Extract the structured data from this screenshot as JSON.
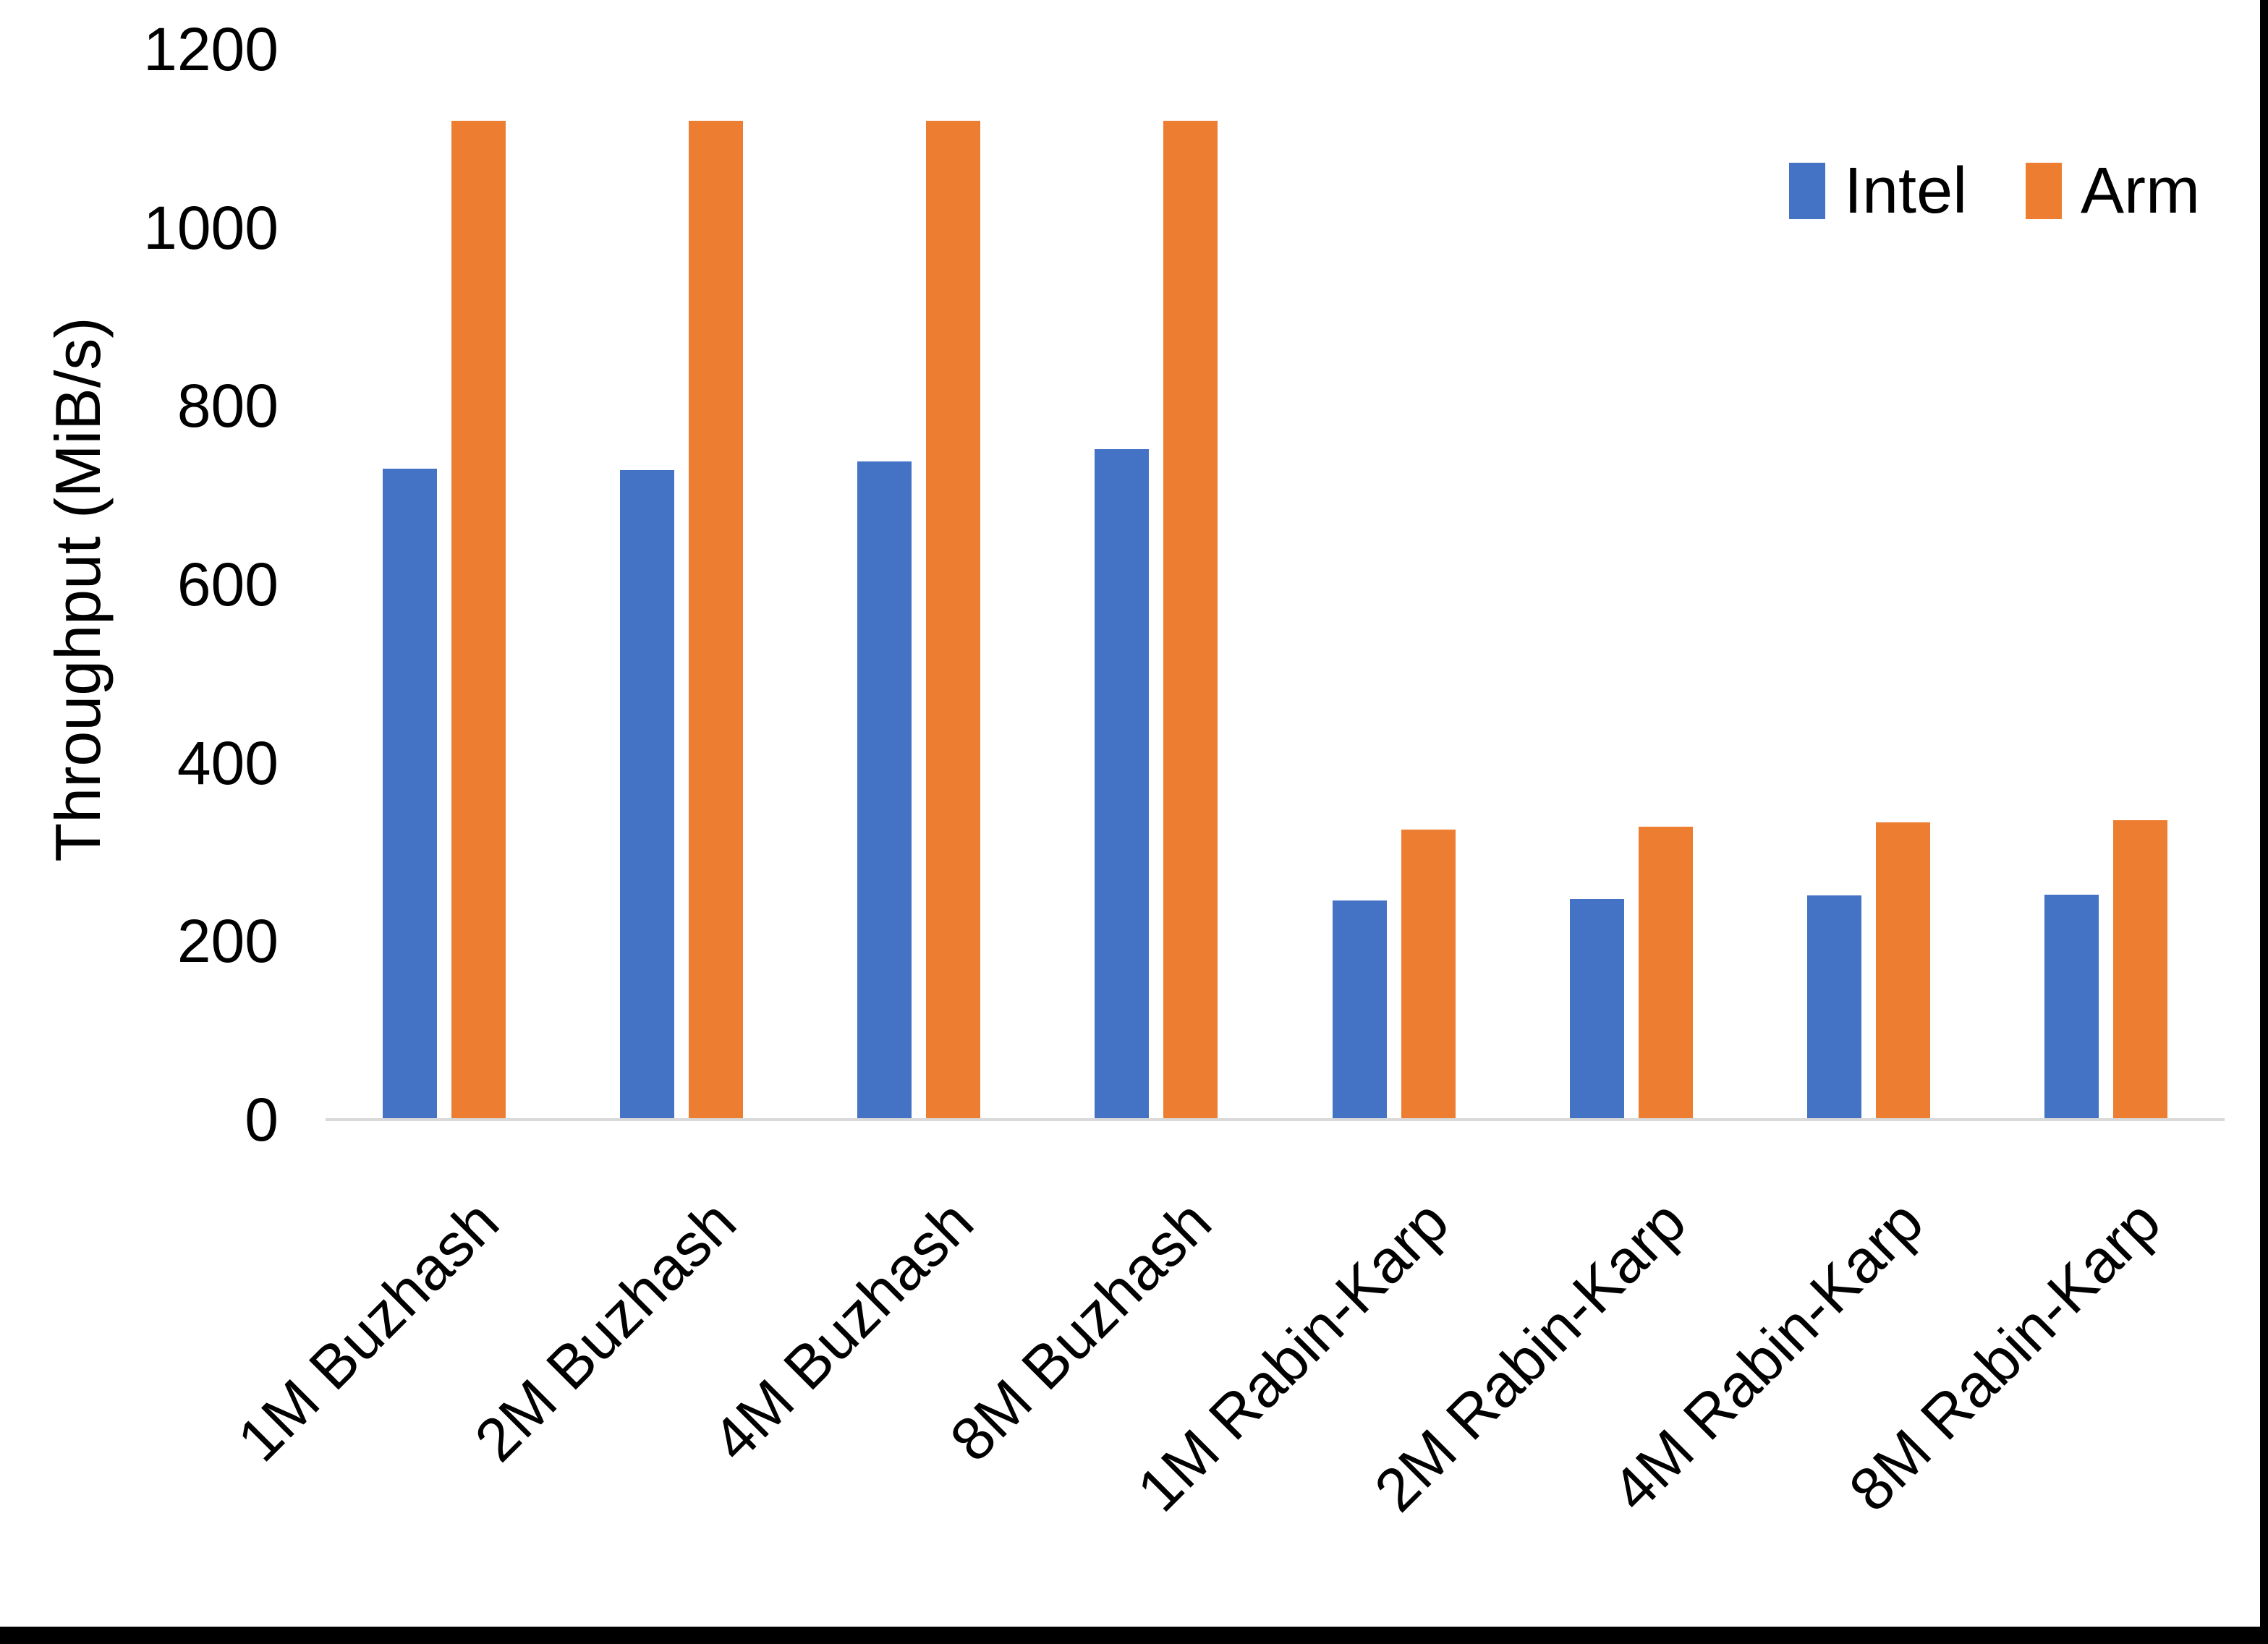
{
  "chart_data": {
    "type": "bar",
    "title": "",
    "categories": [
      "1M Buzhash",
      "2M Buzhash",
      "4M Buzhash",
      "8M Buzhash",
      "1M Rabin-Karp",
      "2M Rabin-Karp",
      "4M Rabin-Karp",
      "8M Rabin-Karp"
    ],
    "series": [
      {
        "name": "Intel",
        "color": "#4472C4",
        "values": [
          730,
          728,
          738,
          752,
          246,
          247,
          251,
          252
        ]
      },
      {
        "name": "Arm",
        "color": "#ED7D31",
        "values": [
          1120,
          1120,
          1120,
          1120,
          325,
          328,
          333,
          336
        ]
      }
    ],
    "xlabel": "",
    "ylabel": "Throughput (MiB/s)",
    "ylim": [
      0,
      1200
    ],
    "ytick_step": 200,
    "yticks": [
      "0",
      "200",
      "400",
      "600",
      "800",
      "1000",
      "1200"
    ],
    "grid": false,
    "legend_position": "top-right",
    "x_label_rotation_deg": 45
  },
  "legend": {
    "items": [
      {
        "label": "Intel",
        "color": "#4472C4"
      },
      {
        "label": "Arm",
        "color": "#ED7D31"
      }
    ]
  },
  "style": {
    "axis_line_color": "#d9d9d9",
    "text_color": "#000000",
    "background": "#ffffff",
    "border_color": "#000000"
  }
}
